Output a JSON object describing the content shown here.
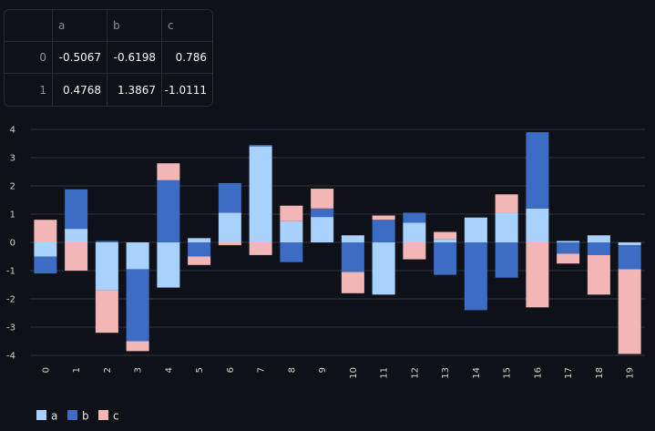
{
  "dataframe": {
    "columns": [
      "",
      "a",
      "b",
      "c"
    ],
    "rows": [
      {
        "index": "0",
        "a": "-0.5067",
        "b": "-0.6198",
        "c": "0.786"
      },
      {
        "index": "1",
        "a": "0.4768",
        "b": "1.3867",
        "c": "-1.0111"
      }
    ]
  },
  "chart_data": {
    "type": "bar",
    "stacked": true,
    "categories": [
      "0",
      "1",
      "2",
      "3",
      "4",
      "5",
      "6",
      "7",
      "8",
      "9",
      "10",
      "11",
      "12",
      "13",
      "14",
      "15",
      "16",
      "17",
      "18",
      "19"
    ],
    "series": [
      {
        "name": "a",
        "color": "#a8d2fb",
        "values": [
          -0.5,
          0.48,
          -1.7,
          -0.95,
          -1.6,
          0.15,
          1.05,
          3.4,
          0.75,
          0.9,
          0.25,
          -1.85,
          0.7,
          0.12,
          0.88,
          1.05,
          1.2,
          0.05,
          0.25,
          -0.1
        ]
      },
      {
        "name": "b",
        "color": "#3d6cc5",
        "values": [
          -0.6,
          1.4,
          0.05,
          -2.55,
          2.2,
          -0.5,
          1.05,
          0.05,
          -0.7,
          0.3,
          -1.05,
          0.8,
          0.35,
          -1.15,
          -2.4,
          -1.25,
          2.7,
          -0.4,
          -0.45,
          -0.85
        ]
      },
      {
        "name": "c",
        "color": "#f2b6b6",
        "values": [
          0.8,
          -1.0,
          -1.5,
          -0.35,
          0.6,
          -0.3,
          -0.1,
          -0.45,
          0.55,
          0.7,
          -0.75,
          0.15,
          -0.6,
          0.25,
          0.0,
          0.65,
          -2.3,
          -0.35,
          -1.4,
          -3.0
        ]
      }
    ],
    "ylim": [
      -4,
      4
    ],
    "yticks": [
      -4,
      -3,
      -2,
      -1,
      0,
      1,
      2,
      3,
      4
    ],
    "grid": true,
    "legend": "bottom-left",
    "xlabel": "",
    "ylabel": ""
  }
}
